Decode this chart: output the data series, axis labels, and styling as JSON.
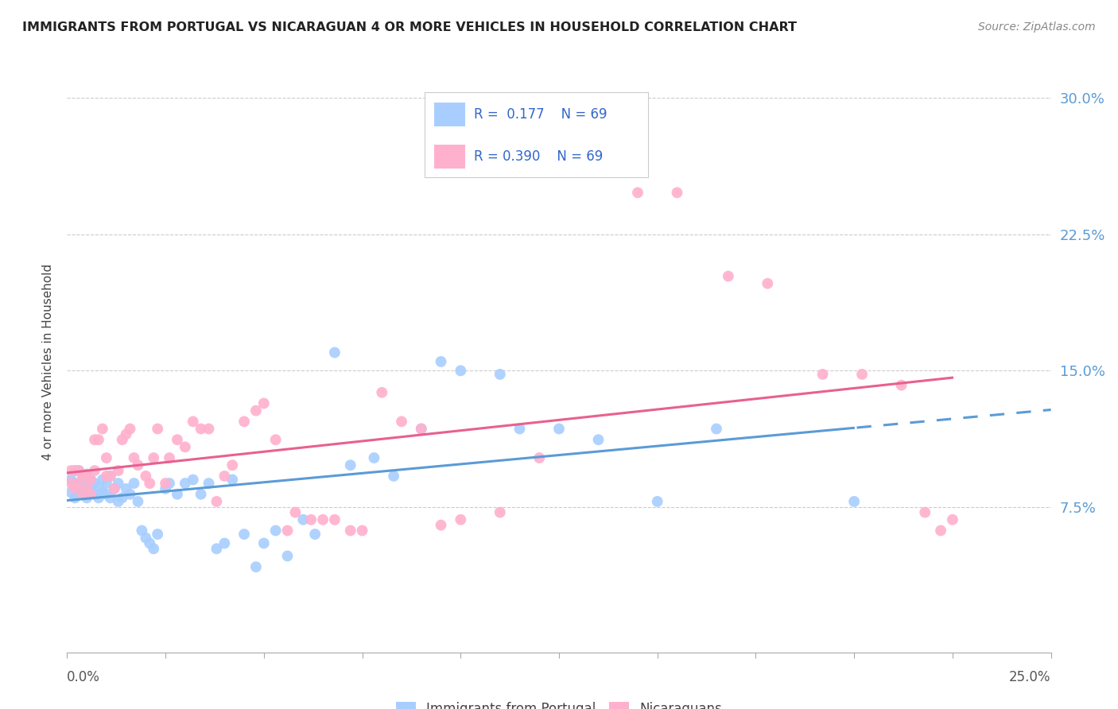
{
  "title": "IMMIGRANTS FROM PORTUGAL VS NICARAGUAN 4 OR MORE VEHICLES IN HOUSEHOLD CORRELATION CHART",
  "source": "Source: ZipAtlas.com",
  "ylabel": "4 or more Vehicles in Household",
  "ytick_vals": [
    0.0,
    0.075,
    0.15,
    0.225,
    0.3
  ],
  "ytick_labels": [
    "",
    "7.5%",
    "15.0%",
    "22.5%",
    "30.0%"
  ],
  "xlim": [
    0.0,
    0.25
  ],
  "ylim": [
    -0.005,
    0.315
  ],
  "legend_R1": "0.177",
  "legend_N1": "69",
  "legend_R2": "0.390",
  "legend_N2": "69",
  "color_portugal": "#A8CEFF",
  "color_nicaragua": "#FFB0CC",
  "color_portugal_line": "#5B9BD5",
  "color_nicaragua_line": "#E86090",
  "background_color": "#FFFFFF",
  "portugal_x": [
    0.001,
    0.001,
    0.002,
    0.002,
    0.002,
    0.003,
    0.003,
    0.003,
    0.004,
    0.004,
    0.005,
    0.005,
    0.005,
    0.006,
    0.006,
    0.007,
    0.007,
    0.008,
    0.008,
    0.009,
    0.009,
    0.01,
    0.01,
    0.011,
    0.011,
    0.012,
    0.013,
    0.013,
    0.014,
    0.015,
    0.016,
    0.017,
    0.018,
    0.019,
    0.02,
    0.021,
    0.022,
    0.023,
    0.025,
    0.026,
    0.028,
    0.03,
    0.032,
    0.034,
    0.036,
    0.038,
    0.04,
    0.042,
    0.045,
    0.048,
    0.05,
    0.053,
    0.056,
    0.06,
    0.063,
    0.068,
    0.072,
    0.078,
    0.083,
    0.09,
    0.095,
    0.1,
    0.11,
    0.115,
    0.125,
    0.135,
    0.15,
    0.165,
    0.2
  ],
  "portugal_y": [
    0.083,
    0.09,
    0.08,
    0.088,
    0.095,
    0.082,
    0.088,
    0.095,
    0.085,
    0.092,
    0.08,
    0.087,
    0.093,
    0.083,
    0.09,
    0.082,
    0.088,
    0.08,
    0.086,
    0.083,
    0.09,
    0.082,
    0.088,
    0.08,
    0.092,
    0.085,
    0.078,
    0.088,
    0.08,
    0.085,
    0.082,
    0.088,
    0.078,
    0.062,
    0.058,
    0.055,
    0.052,
    0.06,
    0.085,
    0.088,
    0.082,
    0.088,
    0.09,
    0.082,
    0.088,
    0.052,
    0.055,
    0.09,
    0.06,
    0.042,
    0.055,
    0.062,
    0.048,
    0.068,
    0.06,
    0.16,
    0.098,
    0.102,
    0.092,
    0.118,
    0.155,
    0.15,
    0.148,
    0.118,
    0.118,
    0.112,
    0.078,
    0.118,
    0.078
  ],
  "nicaragua_x": [
    0.001,
    0.001,
    0.002,
    0.002,
    0.003,
    0.003,
    0.004,
    0.004,
    0.005,
    0.005,
    0.006,
    0.006,
    0.007,
    0.007,
    0.008,
    0.009,
    0.01,
    0.01,
    0.011,
    0.012,
    0.013,
    0.014,
    0.015,
    0.016,
    0.017,
    0.018,
    0.02,
    0.021,
    0.022,
    0.023,
    0.025,
    0.026,
    0.028,
    0.03,
    0.032,
    0.034,
    0.036,
    0.038,
    0.04,
    0.042,
    0.045,
    0.048,
    0.05,
    0.053,
    0.056,
    0.058,
    0.062,
    0.065,
    0.068,
    0.072,
    0.075,
    0.08,
    0.085,
    0.09,
    0.095,
    0.1,
    0.11,
    0.12,
    0.13,
    0.145,
    0.155,
    0.168,
    0.178,
    0.192,
    0.202,
    0.212,
    0.218,
    0.222,
    0.225
  ],
  "nicaragua_y": [
    0.088,
    0.095,
    0.085,
    0.095,
    0.088,
    0.095,
    0.082,
    0.092,
    0.085,
    0.092,
    0.082,
    0.09,
    0.095,
    0.112,
    0.112,
    0.118,
    0.102,
    0.092,
    0.092,
    0.085,
    0.095,
    0.112,
    0.115,
    0.118,
    0.102,
    0.098,
    0.092,
    0.088,
    0.102,
    0.118,
    0.088,
    0.102,
    0.112,
    0.108,
    0.122,
    0.118,
    0.118,
    0.078,
    0.092,
    0.098,
    0.122,
    0.128,
    0.132,
    0.112,
    0.062,
    0.072,
    0.068,
    0.068,
    0.068,
    0.062,
    0.062,
    0.138,
    0.122,
    0.118,
    0.065,
    0.068,
    0.072,
    0.102,
    0.272,
    0.248,
    0.248,
    0.202,
    0.198,
    0.148,
    0.148,
    0.142,
    0.072,
    0.062,
    0.068
  ]
}
